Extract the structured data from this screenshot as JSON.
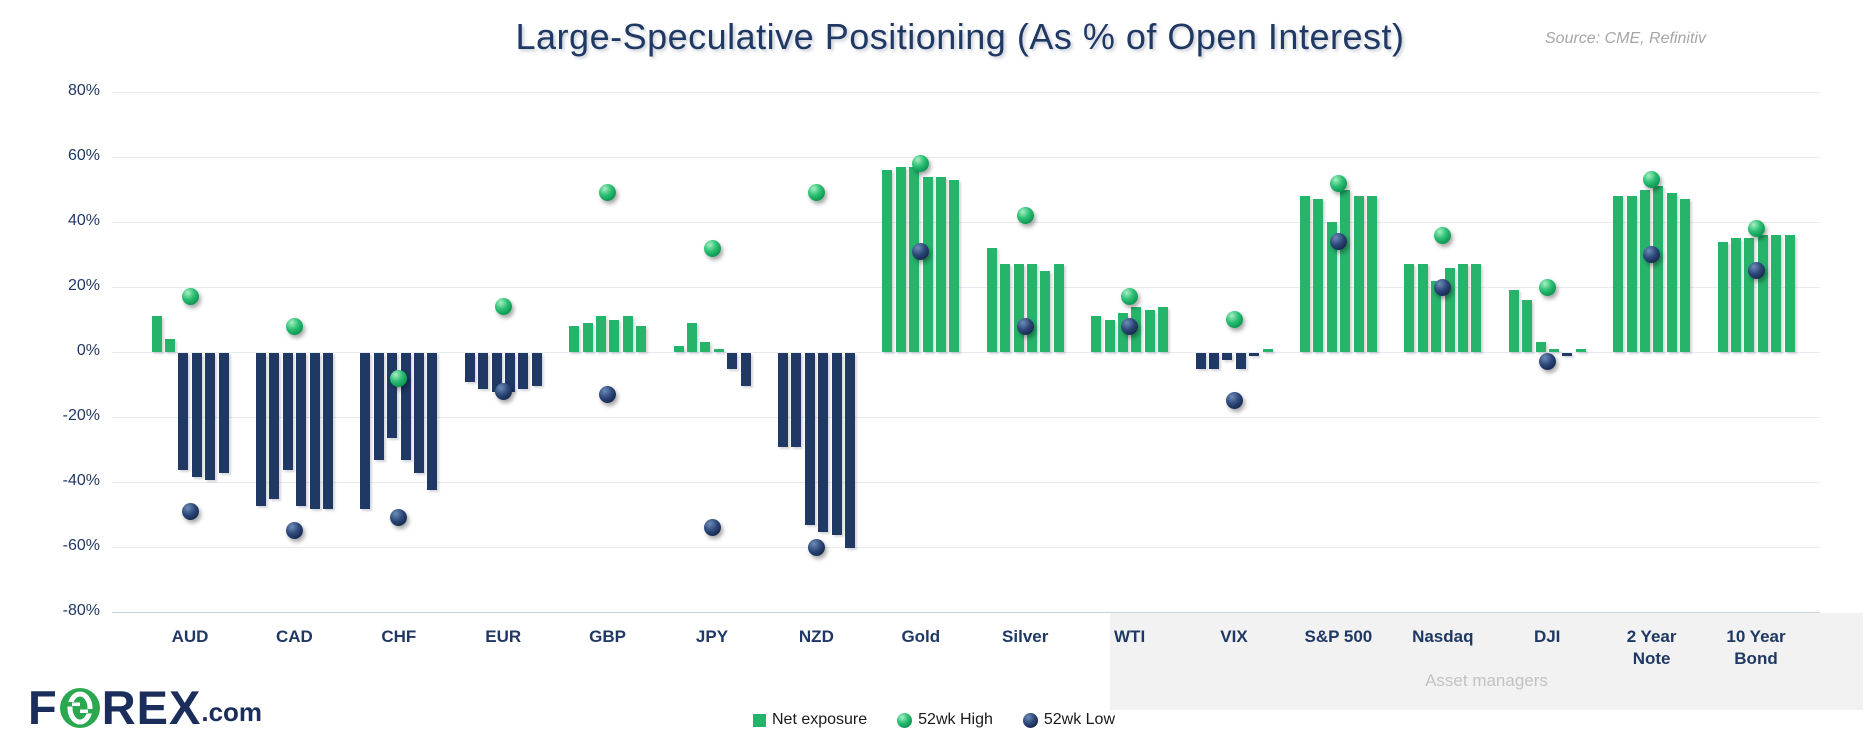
{
  "logo": {
    "f": "F",
    "rex": "REX",
    "com": ".com"
  },
  "colors": {
    "green_bar": "#26b46b",
    "navy_bar": "#1f3864",
    "grid": "#e7ebf0",
    "axis_line": "#c9d2da",
    "band_bg": "#f2f2f2",
    "band_text": "#c2c2c2",
    "title_text": "#203864",
    "source_text": "#a6a6a6",
    "high_dot": "#17a85e",
    "low_dot": "#1c335e"
  },
  "chart_data": {
    "type": "bar",
    "title": "Large-Speculative Positioning (As % of Open Interest)",
    "source": "Source: CME, Refinitiv",
    "xlabel": "",
    "ylabel": "",
    "unit": "%",
    "ylim": [
      -80,
      80
    ],
    "y_tick_step": 20,
    "y_ticks": [
      80,
      60,
      40,
      20,
      0,
      -20,
      -40,
      -60,
      -80
    ],
    "grid": true,
    "legend_position": "bottom",
    "categories": [
      "AUD",
      "CAD",
      "CHF",
      "EUR",
      "GBP",
      "JPY",
      "NZD",
      "Gold",
      "Silver",
      "WTI",
      "VIX",
      "S&P 500",
      "Nasdaq",
      "DJI",
      "2 Year Note",
      "10 Year Bond"
    ],
    "series": [
      {
        "name": "Net exposure",
        "kind": "weekly_bars",
        "values": [
          [
            11,
            4,
            -36,
            -38,
            -39,
            -37
          ],
          [
            -47,
            -45,
            -36,
            -47,
            -48,
            -48
          ],
          [
            -48,
            -33,
            -26,
            -33,
            -37,
            -42
          ],
          [
            -9,
            -11,
            -12,
            -12,
            -11,
            -10
          ],
          [
            8,
            9,
            11,
            10,
            11,
            8
          ],
          [
            2,
            9,
            3,
            1,
            -5,
            -10
          ],
          [
            -29,
            -29,
            -53,
            -55,
            -56,
            -60
          ],
          [
            56,
            57,
            57,
            54,
            54,
            53
          ],
          [
            32,
            27,
            27,
            27,
            25,
            27
          ],
          [
            11,
            10,
            12,
            14,
            13,
            14
          ],
          [
            -5,
            -5,
            -2,
            -5,
            -1,
            1
          ],
          [
            48,
            47,
            40,
            50,
            48,
            48
          ],
          [
            27,
            27,
            22,
            26,
            27,
            27
          ],
          [
            19,
            16,
            3,
            1,
            -1,
            1
          ],
          [
            48,
            48,
            50,
            51,
            49,
            47
          ],
          [
            34,
            35,
            35,
            36,
            36,
            36
          ]
        ]
      },
      {
        "name": "52wk High",
        "kind": "point",
        "values": [
          17,
          8,
          -8,
          14,
          49,
          32,
          49,
          58,
          42,
          17,
          10,
          52,
          36,
          20,
          53,
          38
        ]
      },
      {
        "name": "52wk Low",
        "kind": "point",
        "values": [
          -49,
          -55,
          -51,
          -12,
          -13,
          -54,
          -60,
          31,
          8,
          8,
          -15,
          34,
          20,
          -3,
          30,
          25
        ]
      }
    ],
    "annotations": [
      {
        "label": "Asset managers",
        "applies_to_categories": [
          "VIX",
          "S&P 500",
          "Nasdaq",
          "DJI",
          "2 Year Note",
          "10 Year Bond"
        ]
      }
    ]
  }
}
